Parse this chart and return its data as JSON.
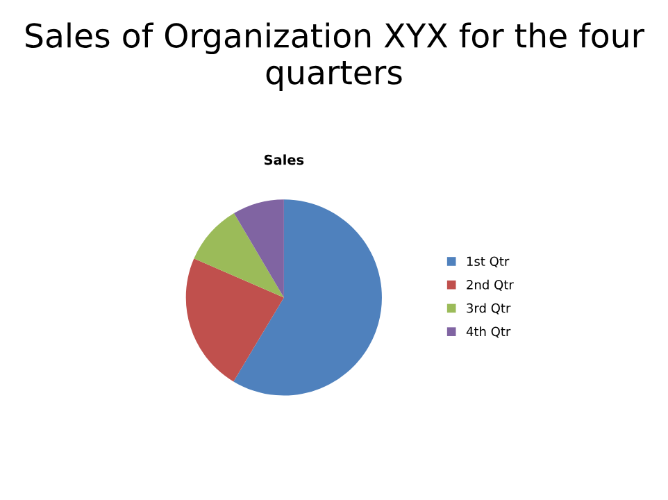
{
  "chart_data": {
    "type": "pie",
    "title": "Sales of Organization XYX for the four quarters",
    "subtitle": "Sales",
    "categories": [
      "1st Qtr",
      "2nd Qtr",
      "3rd Qtr",
      "4th Qtr"
    ],
    "values": [
      58.6,
      22.9,
      10.0,
      8.5
    ],
    "colors": [
      "#4f81bd",
      "#c0504d",
      "#9bbb59",
      "#8064a2"
    ],
    "legend": "right"
  }
}
